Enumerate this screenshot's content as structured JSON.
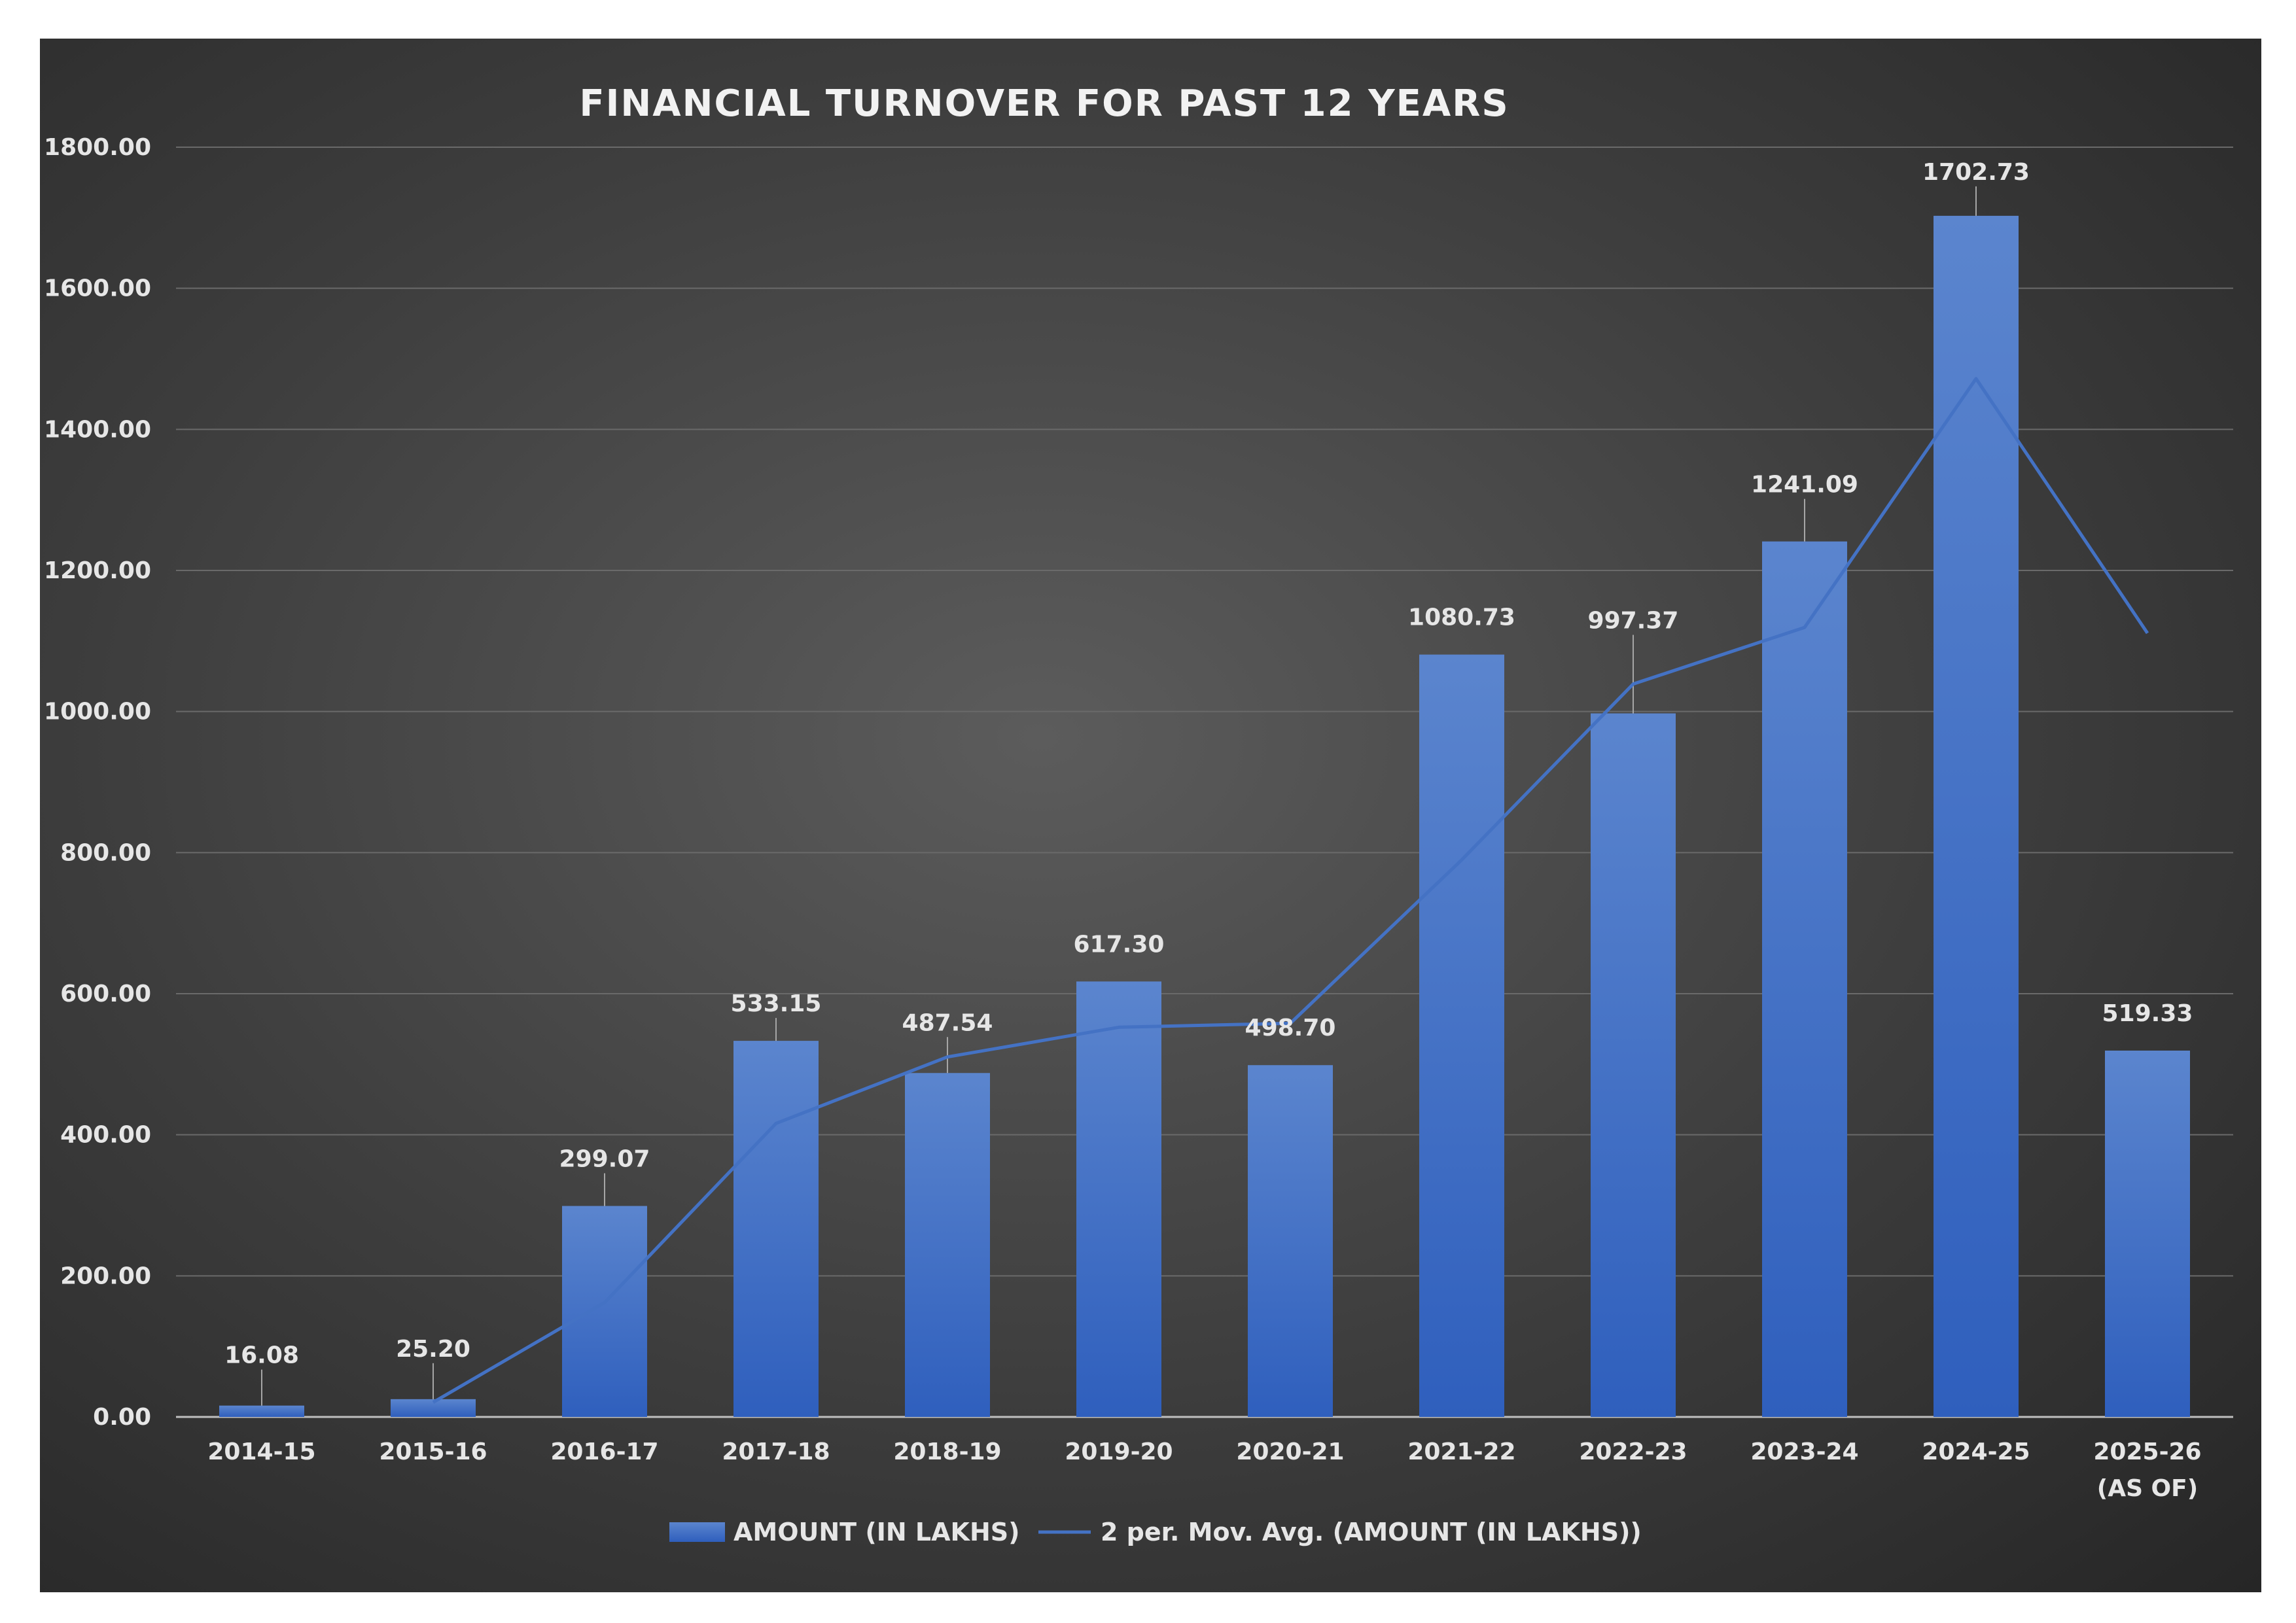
{
  "chart_data": {
    "type": "bar",
    "title": "FINANCIAL TURNOVER FOR PAST 12 YEARS",
    "xlabel": "",
    "ylabel": "",
    "ylim": [
      0,
      1800
    ],
    "yticks": [
      "0.00",
      "200.00",
      "400.00",
      "600.00",
      "800.00",
      "1000.00",
      "1200.00",
      "1400.00",
      "1600.00",
      "1800.00"
    ],
    "categories": [
      [
        "2014-15"
      ],
      [
        "2015-16"
      ],
      [
        "2016-17"
      ],
      [
        "2017-18"
      ],
      [
        "2018-19"
      ],
      [
        "2019-20"
      ],
      [
        "2020-21"
      ],
      [
        "2021-22"
      ],
      [
        "2022-23"
      ],
      [
        "2023-24"
      ],
      [
        "2024-25"
      ],
      [
        "2025-26",
        "(AS OF)"
      ]
    ],
    "series": [
      {
        "name": "AMOUNT (IN LAKHS)",
        "type": "bar",
        "values": [
          16.08,
          25.2,
          299.07,
          533.15,
          487.54,
          617.3,
          498.7,
          1080.73,
          997.37,
          1241.09,
          1702.73,
          519.33
        ],
        "labels": [
          "16.08",
          "25.20",
          "299.07",
          "533.15",
          "487.54",
          "617.30",
          "498.70",
          "1080.73",
          "997.37",
          "1241.09",
          "1702.73",
          "519.33"
        ],
        "color": "#4472c4"
      },
      {
        "name": "2 per. Mov. Avg. (AMOUNT (IN LAKHS))",
        "type": "line",
        "values": [
          null,
          20.64,
          162.14,
          416.11,
          510.35,
          552.42,
          558.0,
          789.72,
          1039.05,
          1119.23,
          1471.91,
          1111.03
        ],
        "color": "#4472c4"
      }
    ],
    "grid": true,
    "legend_position": "bottom"
  }
}
